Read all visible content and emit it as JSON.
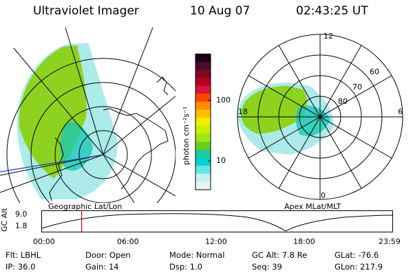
{
  "header": {
    "instrument": "Ultraviolet Imager",
    "date": "10 Aug 07",
    "time": "02:43:25 UT"
  },
  "left_panel": {
    "caption": "Geographic Lat/Lon"
  },
  "right_panel": {
    "caption": "Apex  MLat/MLT",
    "mlt_labels": [
      "12",
      "18",
      "6",
      "0"
    ],
    "mlat_labels": [
      "60",
      "70",
      "80"
    ]
  },
  "colorbar": {
    "unit_label": "photon cm⁻²s⁻¹",
    "ticks": [
      "100",
      "10"
    ],
    "colors": [
      "#1a0010",
      "#4b0a2a",
      "#7a0a1e",
      "#b4001e",
      "#dc143c",
      "#ff4500",
      "#ff8c00",
      "#ffc000",
      "#f0f000",
      "#c8f000",
      "#a0e614",
      "#64d21e",
      "#1ec8a0",
      "#00d2d2",
      "#64e6e6",
      "#c8f0f0",
      "#e6f5f5"
    ]
  },
  "timeline": {
    "axis_label": "GC Alt",
    "y_ticks": [
      "9.0",
      "1.8"
    ],
    "x_ticks": [
      "00:00",
      "06:00",
      "12:00",
      "18:00",
      "23:59"
    ],
    "marker_time": "02:43"
  },
  "info": {
    "row1": [
      {
        "label": "Flt:",
        "value": "LBHL"
      },
      {
        "label": "Door:",
        "value": "Open"
      },
      {
        "label": "Mode:",
        "value": "Normal"
      },
      {
        "label": "GC Alt:",
        "value": "7.8 Re"
      },
      {
        "label": "GLat:",
        "value": "-76.6"
      }
    ],
    "row2": [
      {
        "label": "IP:",
        "value": "36.0"
      },
      {
        "label": "Gain:",
        "value": "14"
      },
      {
        "label": "Dsp:",
        "value": "1.0"
      },
      {
        "label": "Seq:",
        "value": "39"
      },
      {
        "label": "GLon:",
        "value": "217.9"
      }
    ]
  }
}
